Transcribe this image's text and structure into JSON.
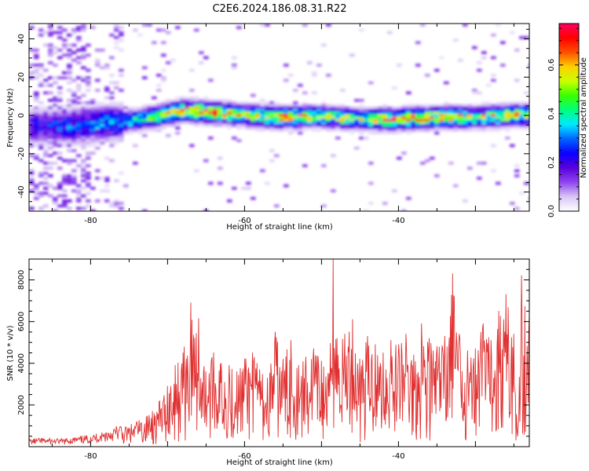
{
  "figure": {
    "title": "C2E6.2024.186.08.31.R22"
  },
  "chart_data": [
    {
      "type": "heatmap",
      "xlabel": "Height of straight line (km)",
      "ylabel": "Frequency (Hz)",
      "xlim": [
        -88,
        -23
      ],
      "ylim": [
        -50,
        48
      ],
      "xticks": [
        "-80",
        "-60",
        "-40"
      ],
      "yticks": [
        "-40",
        "-20",
        "0",
        "20",
        "40"
      ],
      "colorbar": {
        "label": "Normalized spectral amplitude",
        "range": [
          0,
          0.77
        ],
        "ticks": [
          "0.0",
          "0.2",
          "0.4",
          "0.6"
        ],
        "colors": [
          "#ffffff",
          "#d9c6f5",
          "#8f45ee",
          "#5a00dc",
          "#0a00ff",
          "#0064ff",
          "#00e8ff",
          "#00ff80",
          "#38ff00",
          "#c8ff00",
          "#ffd000",
          "#ff5000",
          "#ff0000",
          "#ff0060"
        ]
      },
      "band_center_hz": [
        [
          -82,
          -5.5
        ],
        [
          -79,
          -4.5
        ],
        [
          -76,
          -3.5
        ],
        [
          -72,
          -1
        ],
        [
          -68,
          2.5
        ],
        [
          -64,
          1.5
        ],
        [
          -60,
          0
        ],
        [
          -55,
          -1
        ],
        [
          -50,
          -0.5
        ],
        [
          -45,
          -2
        ],
        [
          -40,
          -2
        ],
        [
          -35,
          -1
        ],
        [
          -30,
          -1
        ],
        [
          -25,
          0
        ]
      ],
      "band_peak_amplitude": [
        [
          -88,
          0.25
        ],
        [
          -84,
          0.3
        ],
        [
          -80,
          0.33
        ],
        [
          -76,
          0.38
        ],
        [
          -72,
          0.55
        ],
        [
          -68,
          0.7
        ],
        [
          -64,
          0.72
        ],
        [
          -60,
          0.55
        ],
        [
          -55,
          0.68
        ],
        [
          -50,
          0.6
        ],
        [
          -45,
          0.55
        ],
        [
          -40,
          0.7
        ],
        [
          -35,
          0.68
        ],
        [
          -30,
          0.58
        ],
        [
          -25,
          0.62
        ]
      ]
    },
    {
      "type": "line",
      "xlabel": "Height of straight line (km)",
      "ylabel": "SNR (10 * v/v)",
      "xlim": [
        -88,
        -23
      ],
      "ylim": [
        0,
        9000
      ],
      "xticks": [
        "-80",
        "-60",
        "-40"
      ],
      "yticks": [
        "2000",
        "4000",
        "6000",
        "8000"
      ],
      "series": [
        {
          "color": "#e03030",
          "x": [
            -88,
            -86,
            -84,
            -82,
            -80,
            -78,
            -76,
            -74,
            -72,
            -71,
            -70,
            -69,
            -68,
            -67,
            -66.5,
            -66,
            -65,
            -64,
            -63,
            -62,
            -61,
            -60,
            -59,
            -58,
            -57,
            -56,
            -55,
            -54,
            -53,
            -52,
            -51,
            -50,
            -49,
            -48.5,
            -48,
            -47,
            -46,
            -45,
            -44,
            -43,
            -42,
            -41,
            -40,
            -39,
            -38,
            -37,
            -36,
            -35,
            -34,
            -33,
            -32,
            -31,
            -30,
            -29,
            -28,
            -27,
            -26,
            -25,
            -24.5,
            -24,
            -23
          ],
          "y": [
            300,
            350,
            300,
            380,
            450,
            650,
            900,
            1200,
            1700,
            2200,
            2900,
            3900,
            4500,
            6900,
            5200,
            6150,
            3600,
            4500,
            4000,
            3900,
            3600,
            4200,
            4500,
            3700,
            3300,
            5500,
            4200,
            5100,
            3900,
            4300,
            4700,
            4100,
            3500,
            9000,
            5200,
            5400,
            6100,
            4200,
            5300,
            4900,
            4500,
            5100,
            4900,
            5400,
            4400,
            5900,
            5200,
            4800,
            5300,
            8300,
            5200,
            4600,
            4700,
            5900,
            5100,
            6500,
            7300,
            5400,
            500,
            8200,
            6300
          ]
        }
      ]
    }
  ]
}
